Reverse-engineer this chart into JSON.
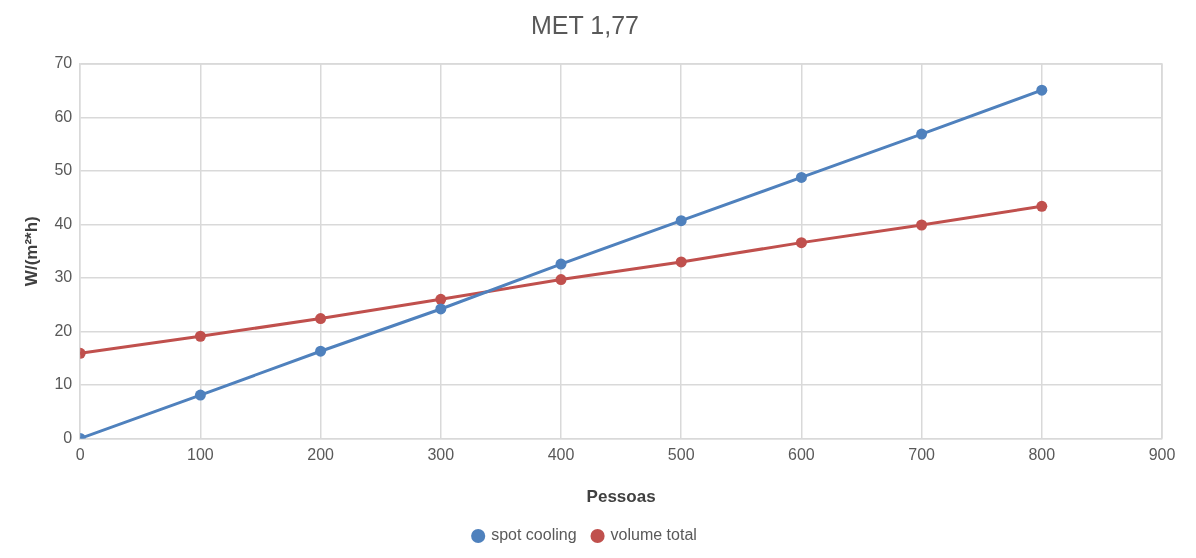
{
  "chart_data": {
    "type": "line",
    "title": "MET 1,77",
    "xlabel": "Pessoas",
    "ylabel": "W/(m²*h)",
    "x": [
      0,
      100,
      200,
      300,
      400,
      500,
      600,
      700,
      800
    ],
    "series": [
      {
        "name": "spot cooling",
        "color": "#4f81bd",
        "values": [
          0,
          8.1,
          16.3,
          24.2,
          32.6,
          40.7,
          48.8,
          56.9,
          65.1
        ]
      },
      {
        "name": "volume total",
        "color": "#c0504d",
        "values": [
          15.9,
          19.1,
          22.4,
          26.0,
          29.7,
          33.0,
          36.6,
          39.9,
          43.4
        ]
      }
    ],
    "xlim": [
      0,
      900
    ],
    "xticks": [
      0,
      100,
      200,
      300,
      400,
      500,
      600,
      700,
      800,
      900
    ],
    "ylim": [
      0,
      70
    ],
    "yticks": [
      0,
      10,
      20,
      30,
      40,
      50,
      60,
      70
    ],
    "grid": true,
    "legend": "bottom",
    "marker": "circle",
    "line_style": "solid"
  }
}
